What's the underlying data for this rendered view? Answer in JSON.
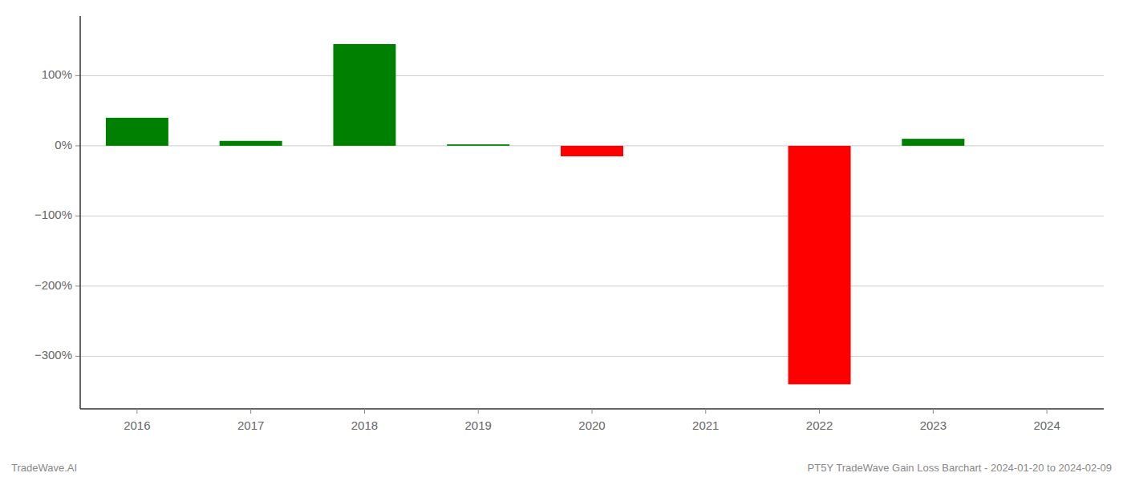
{
  "chart_data": {
    "type": "bar",
    "categories": [
      "2016",
      "2017",
      "2018",
      "2019",
      "2020",
      "2021",
      "2022",
      "2023",
      "2024"
    ],
    "values": [
      40.0,
      7.0,
      145.0,
      2.0,
      -15.0,
      0.0,
      -340.0,
      10.0,
      0.0
    ],
    "colors": [
      "#008000",
      "#008000",
      "#008000",
      "#008000",
      "#ff0000",
      "#008000",
      "#ff0000",
      "#008000",
      "#008000"
    ],
    "ylim": [
      -375,
      185
    ],
    "yticks": [
      {
        "value": 100,
        "label": "100%"
      },
      {
        "value": 0,
        "label": "0%"
      },
      {
        "value": -100,
        "label": "−100%"
      },
      {
        "value": -200,
        "label": "−200%"
      },
      {
        "value": -300,
        "label": "−300%"
      }
    ],
    "grid": true,
    "annotations": [
      "TradeWave.AI",
      "PT5Y TradeWave Gain Loss Barchart - 2024-01-20 to 2024-02-09"
    ]
  }
}
